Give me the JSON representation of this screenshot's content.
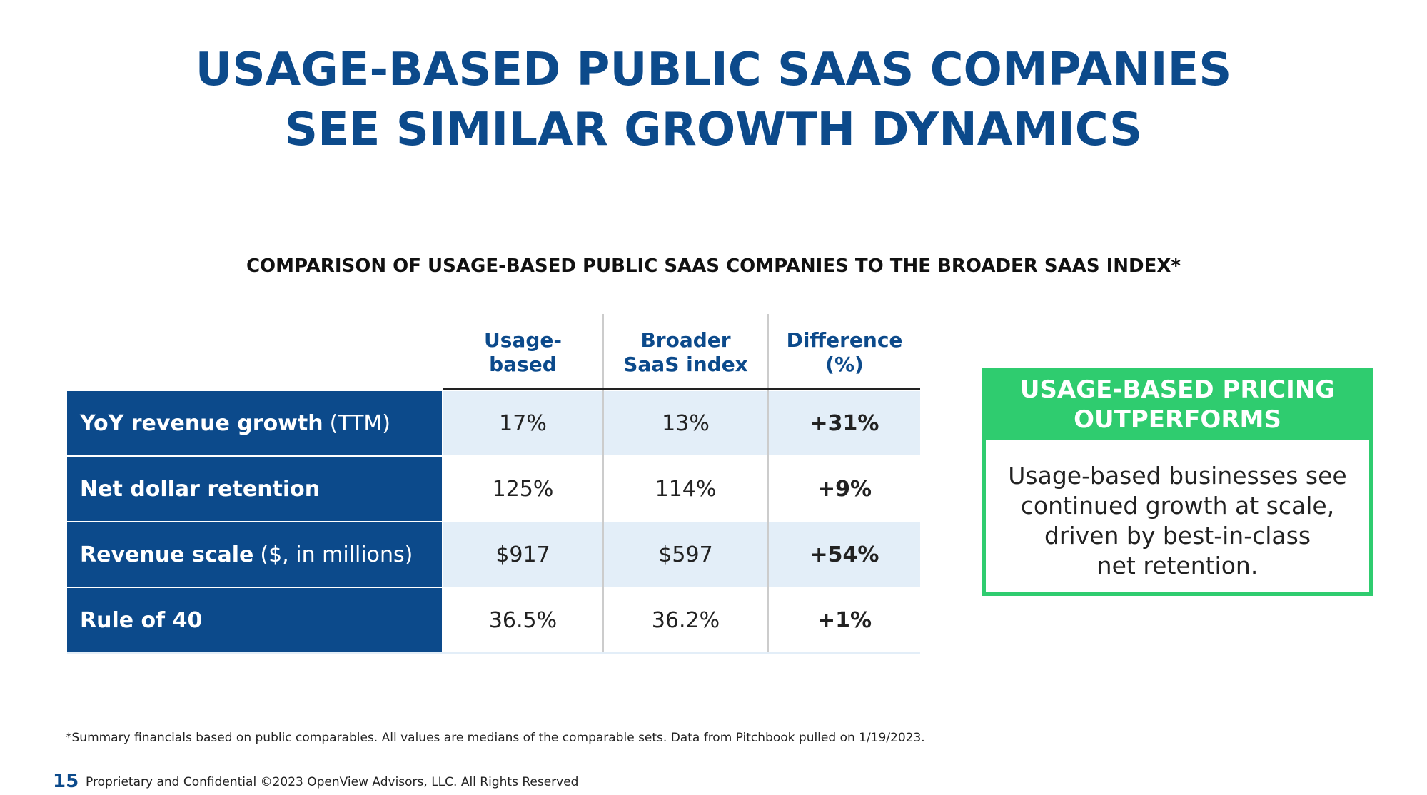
{
  "header": {
    "title": [
      "USAGE-BASED PUBLIC SAAS COMPANIES",
      "SEE SIMILAR GROWTH DYNAMICS"
    ],
    "subtitle": "COMPARISON OF USAGE-BASED PUBLIC SAAS COMPANIES TO THE BROADER SAAS INDEX*"
  },
  "table": {
    "headers": [
      [
        "Usage-",
        "based"
      ],
      [
        "Broader",
        "SaaS index"
      ],
      [
        "Difference",
        "(%)"
      ]
    ],
    "rows": [
      {
        "label": "YoY revenue growth",
        "qualifier": "(TTM)",
        "cells": [
          "17%",
          "13%",
          "+31%"
        ]
      },
      {
        "label": "Net dollar retention",
        "cells": [
          "125%",
          "114%",
          "+9%"
        ]
      },
      {
        "label": "Revenue scale",
        "qualifier": "($, in millions)",
        "cells": [
          "$917",
          "$597",
          "+54%"
        ]
      },
      {
        "label": "Rule of 40",
        "cells": [
          "36.5%",
          "36.2%",
          "+1%"
        ]
      }
    ]
  },
  "callout": {
    "title": [
      "USAGE-BASED PRICING",
      "OUTPERFORMS"
    ],
    "body": [
      "Usage-based businesses see",
      "continued growth at scale,",
      "driven by best-in-class",
      "net retention."
    ]
  },
  "footnote": "*Summary financials based on public comparables. All values are medians of the comparable sets. Data from Pitchbook pulled on 1/19/2023.",
  "footer": {
    "page": "15",
    "text": "Proprietary and Confidential ©2023 OpenView Advisors, LLC. All Rights Reserved"
  }
}
